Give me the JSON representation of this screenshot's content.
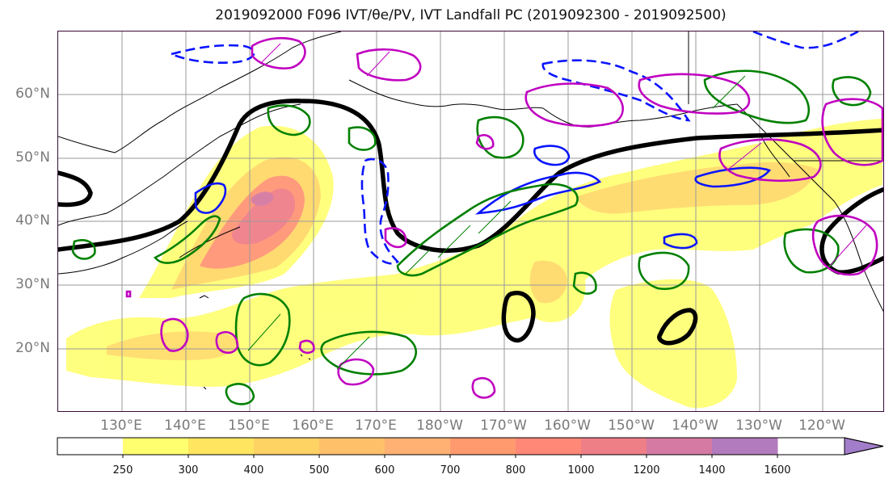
{
  "title": "2019092000 F096 IVT/θe/PV, IVT Landfall PC (2019092300 - 2019092500)",
  "lat_labels": [
    "60°N",
    "50°N",
    "40°N",
    "30°N",
    "20°N"
  ],
  "lon_labels": [
    "130°E",
    "140°E",
    "150°E",
    "160°E",
    "170°E",
    "180°W",
    "170°W",
    "160°W",
    "150°W",
    "140°W",
    "130°W",
    "120°W"
  ],
  "colorbar": {
    "ticks": [
      "250",
      "300",
      "400",
      "500",
      "600",
      "700",
      "800",
      "1000",
      "1200",
      "1400",
      "1600"
    ],
    "colors": [
      "#ffffff",
      "#ffff70",
      "#ffe560",
      "#ffd264",
      "#ffc06a",
      "#ffb173",
      "#ff9a6e",
      "#ff8877",
      "#ef7f87",
      "#d57aa2",
      "#b27bbd",
      "#a27dc9"
    ]
  },
  "layers": {
    "ivt_fill_colors": [
      "#ffff70",
      "#ffe560",
      "#ffd264",
      "#ffc06a",
      "#ff8877",
      "#ef7f87"
    ],
    "height_contour_color": "#000000",
    "theta_e_solid_color": "#0a14ff",
    "pv_color": "#008000",
    "landfall_pc_color": "#c000c0"
  }
}
